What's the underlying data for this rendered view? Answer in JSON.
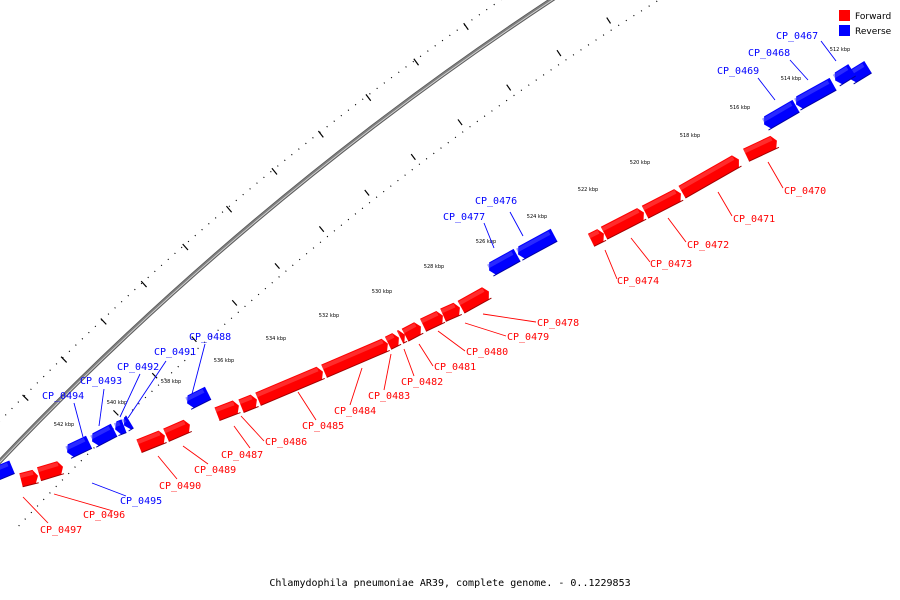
{
  "legend": [
    {
      "label": "Forward",
      "color": "#ff0000"
    },
    {
      "label": "Reverse",
      "color": "#0000ff"
    }
  ],
  "colors": {
    "forward": "#ff0000",
    "reverse": "#0000ff",
    "backbone": "#808080"
  },
  "caption": "Chlamydophila pneumoniae AR39, complete genome. - 0..1229853",
  "axis_unit": "kbp",
  "ticks": [
    512,
    514,
    516,
    518,
    520,
    522,
    524,
    526,
    528,
    530,
    532,
    534,
    536,
    538,
    540,
    542
  ],
  "genes": [
    {
      "name": "CP_0467",
      "strand": "reverse"
    },
    {
      "name": "CP_0468",
      "strand": "reverse"
    },
    {
      "name": "CP_0469",
      "strand": "reverse"
    },
    {
      "name": "CP_0470",
      "strand": "forward"
    },
    {
      "name": "CP_0471",
      "strand": "forward"
    },
    {
      "name": "CP_0472",
      "strand": "forward"
    },
    {
      "name": "CP_0473",
      "strand": "forward"
    },
    {
      "name": "CP_0474",
      "strand": "forward"
    },
    {
      "name": "CP_0476",
      "strand": "reverse"
    },
    {
      "name": "CP_0477",
      "strand": "reverse"
    },
    {
      "name": "CP_0478",
      "strand": "forward"
    },
    {
      "name": "CP_0479",
      "strand": "forward"
    },
    {
      "name": "CP_0480",
      "strand": "forward"
    },
    {
      "name": "CP_0481",
      "strand": "forward"
    },
    {
      "name": "CP_0482",
      "strand": "forward"
    },
    {
      "name": "CP_0483",
      "strand": "forward"
    },
    {
      "name": "CP_0484",
      "strand": "forward"
    },
    {
      "name": "CP_0485",
      "strand": "forward"
    },
    {
      "name": "CP_0486",
      "strand": "forward"
    },
    {
      "name": "CP_0487",
      "strand": "forward"
    },
    {
      "name": "CP_0488",
      "strand": "reverse"
    },
    {
      "name": "CP_0489",
      "strand": "forward"
    },
    {
      "name": "CP_0490",
      "strand": "forward"
    },
    {
      "name": "CP_0491",
      "strand": "reverse"
    },
    {
      "name": "CP_0492",
      "strand": "reverse"
    },
    {
      "name": "CP_0493",
      "strand": "reverse"
    },
    {
      "name": "CP_0494",
      "strand": "reverse"
    },
    {
      "name": "CP_0495",
      "strand": "reverse"
    },
    {
      "name": "CP_0496",
      "strand": "forward"
    },
    {
      "name": "CP_0497",
      "strand": "forward"
    }
  ]
}
